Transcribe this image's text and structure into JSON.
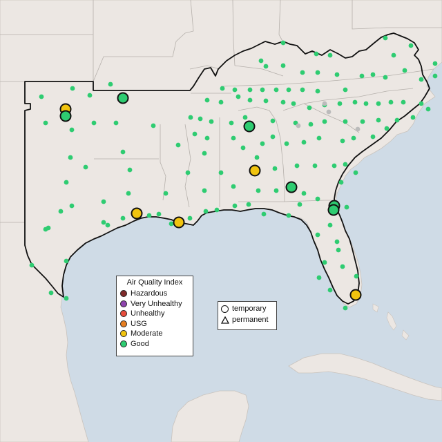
{
  "legend": {
    "title": "Air Quality Index",
    "levels": [
      {
        "label": "Hazardous",
        "color": "#7e2a2a"
      },
      {
        "label": "Very Unhealthy",
        "color": "#8e44ad"
      },
      {
        "label": "Unhealthy",
        "color": "#e74c3c"
      },
      {
        "label": "USG",
        "color": "#e67e22"
      },
      {
        "label": "Moderate",
        "color": "#f1c40f"
      },
      {
        "label": "Good",
        "color": "#2ecc71"
      }
    ]
  },
  "monitor_types": {
    "temporary": {
      "label": "temporary",
      "icon": "circle-icon"
    },
    "permanent": {
      "label": "permanent",
      "icon": "triangle-icon"
    }
  },
  "colors": {
    "water": "#cfdbe6",
    "land": "#ece7e3",
    "state_border": "#b5b0ab",
    "region_outline": "#111111",
    "good": "#2ecc71",
    "moderate": "#f1c40f",
    "inactive": "#bbbbbb"
  }
}
